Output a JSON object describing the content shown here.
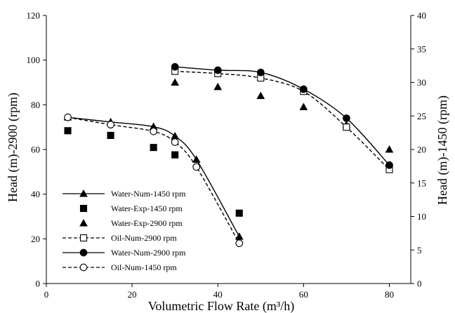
{
  "chart_data": {
    "type": "line",
    "xlabel": "Volumetric  Flow  Rate (m³/h)",
    "ylabel_left": "Head (m)-2900  (rpm)",
    "ylabel_right": "Head (m)-1450  (rpm)",
    "xlim": [
      0,
      85
    ],
    "ylim_left": [
      0,
      120
    ],
    "ylim_right": [
      0,
      40
    ],
    "x_ticks": [
      0,
      20,
      40,
      60,
      80
    ],
    "y_left_ticks": [
      0,
      20,
      40,
      60,
      80,
      100,
      120
    ],
    "y_right_ticks": [
      0,
      5,
      10,
      15,
      20,
      25,
      30,
      35,
      40
    ],
    "grid": false,
    "legend_position": "bottom-left",
    "series": [
      {
        "name": "Water-Num-1450 rpm",
        "axis": "right",
        "marker": "triangle",
        "filled": true,
        "line": "solid",
        "x": [
          5,
          15,
          25,
          30,
          35,
          45
        ],
        "y": [
          24.8,
          24.1,
          23.4,
          22.0,
          18.5,
          7.0
        ]
      },
      {
        "name": "Water-Exp-1450 rpm",
        "axis": "right",
        "marker": "square",
        "filled": true,
        "line": "none",
        "x": [
          5,
          15,
          25,
          30,
          45
        ],
        "y": [
          22.8,
          22.1,
          20.3,
          19.2,
          10.5
        ]
      },
      {
        "name": "Water-Exp-2900 rpm",
        "axis": "left",
        "marker": "triangle",
        "filled": true,
        "line": "none",
        "x": [
          30,
          40,
          50,
          60,
          70,
          80
        ],
        "y": [
          90,
          88,
          84,
          79,
          71,
          60
        ]
      },
      {
        "name": "Oil-Num-2900 rpm",
        "axis": "left",
        "marker": "square",
        "filled": false,
        "line": "dashed",
        "x": [
          30,
          40,
          50,
          60,
          70,
          80
        ],
        "y": [
          95,
          94,
          92,
          86,
          70,
          51
        ]
      },
      {
        "name": "Water-Num-2900 rpm",
        "axis": "left",
        "marker": "circle",
        "filled": true,
        "line": "solid",
        "x": [
          30,
          40,
          50,
          60,
          70,
          80
        ],
        "y": [
          97,
          95.5,
          94.5,
          87,
          74,
          53
        ]
      },
      {
        "name": "Oil-Num-1450 rpm",
        "axis": "right",
        "marker": "circle",
        "filled": false,
        "line": "dashed",
        "x": [
          5,
          15,
          25,
          30,
          35,
          45
        ],
        "y": [
          24.8,
          23.7,
          22.7,
          21.1,
          17.4,
          6.0
        ]
      }
    ]
  }
}
